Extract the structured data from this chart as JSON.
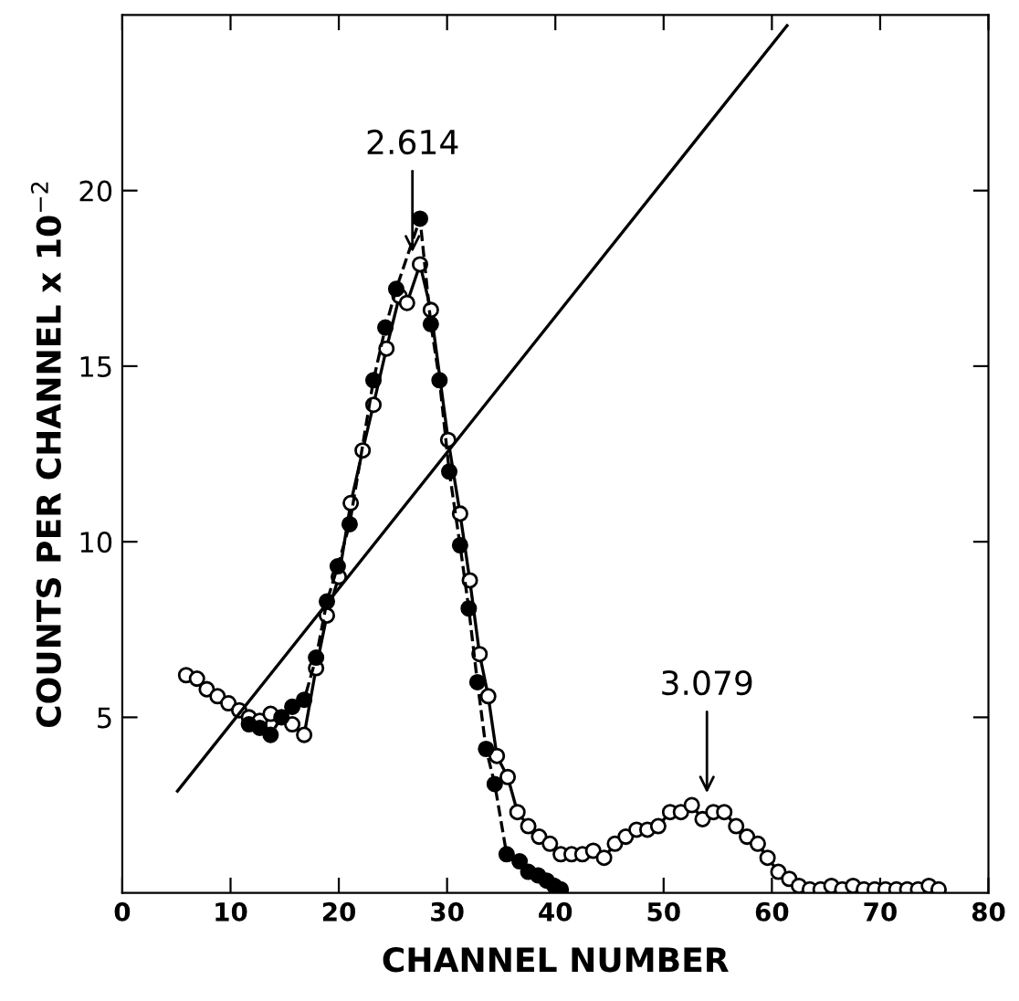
{
  "chart_data": {
    "type": "line",
    "xlabel": "CHANNEL NUMBER",
    "ylabel": "COUNTS PER CHANNEL x 10$^{−2}$",
    "xlim": [
      0,
      80
    ],
    "xticks": [
      0,
      10,
      20,
      30,
      40,
      50,
      60,
      70,
      80
    ],
    "ylim": [
      0,
      25
    ],
    "yticks": [
      5,
      10,
      15,
      20
    ],
    "grid": false,
    "series": [
      {
        "color": "#000000",
        "marker": "circle",
        "line_style": "solid",
        "x": [
          5.9,
          6.9,
          7.8,
          8.8,
          9.8,
          10.8,
          11.7,
          12.7,
          13.7,
          15.7,
          16.8,
          17.9,
          18.9,
          20.0,
          21.1,
          22.2,
          23.2,
          24.4,
          25.6,
          26.3,
          27.5,
          28.5,
          30.1,
          31.2,
          32.1,
          33.0,
          33.8,
          34.6,
          35.6,
          36.5,
          37.5,
          38.5,
          39.5,
          40.5,
          41.5,
          42.5,
          43.5,
          44.5,
          45.5,
          46.5,
          47.5,
          48.5,
          49.5,
          50.6,
          51.6,
          52.6,
          53.6,
          54.6,
          55.6,
          56.7,
          57.7,
          58.7,
          59.6,
          60.6,
          61.6,
          62.5,
          63.5,
          64.5,
          65.5,
          66.5,
          67.5,
          68.5,
          69.5,
          70.5,
          71.5,
          72.5,
          73.5,
          74.5,
          75.4
        ],
        "values": [
          6.2,
          6.1,
          5.8,
          5.6,
          5.4,
          5.2,
          5.0,
          4.9,
          5.1,
          4.8,
          4.5,
          6.4,
          7.9,
          9.0,
          11.1,
          12.6,
          13.9,
          15.5,
          17.0,
          16.8,
          17.9,
          16.6,
          12.9,
          10.8,
          8.9,
          6.8,
          5.6,
          3.9,
          3.3,
          2.3,
          1.9,
          1.6,
          1.4,
          1.1,
          1.1,
          1.1,
          1.2,
          1.0,
          1.4,
          1.6,
          1.8,
          1.8,
          1.9,
          2.3,
          2.3,
          2.5,
          2.1,
          2.3,
          2.3,
          1.9,
          1.6,
          1.4,
          1.0,
          0.6,
          0.4,
          0.2,
          0.1,
          0.1,
          0.2,
          0.1,
          0.2,
          0.1,
          0.1,
          0.1,
          0.1,
          0.1,
          0.1,
          0.2,
          0.1
        ]
      },
      {
        "color": "#000000",
        "marker": "circle",
        "line_style": "dashed",
        "x": [
          11.7,
          12.7,
          13.7,
          14.7,
          15.7,
          16.8,
          17.9,
          18.9,
          19.9,
          21.0,
          23.2,
          24.3,
          25.3,
          27.5,
          28.5,
          29.3,
          30.2,
          31.2,
          32.0,
          32.8,
          33.6,
          34.4,
          35.5,
          36.7,
          37.5,
          38.4,
          39.2,
          39.9,
          40.5
        ],
        "values": [
          4.8,
          4.7,
          4.5,
          5.0,
          5.3,
          5.5,
          6.7,
          8.3,
          9.3,
          10.5,
          14.6,
          16.1,
          17.2,
          19.2,
          16.2,
          14.6,
          12.0,
          9.9,
          8.1,
          6.0,
          4.1,
          3.1,
          1.1,
          0.9,
          0.6,
          0.5,
          0.35,
          0.2,
          0.1
        ]
      },
      {
        "color": "#000000",
        "marker": "none",
        "line_style": "solid",
        "x": [
          5.1,
          61.4
        ],
        "values": [
          2.9,
          24.7
        ]
      }
    ],
    "annotations": [
      {
        "text": "2.614",
        "x": 26.8,
        "y": 18.1
      },
      {
        "text": "3.079",
        "x": 54.0,
        "y": 2.7
      }
    ]
  }
}
